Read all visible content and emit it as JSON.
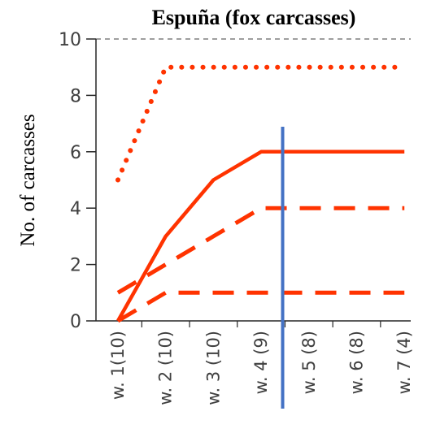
{
  "chart_data": {
    "type": "line",
    "title": "Espuña (fox carcasses)",
    "xlabel": "",
    "ylabel": "No. of carcasses",
    "ylim": [
      0,
      10
    ],
    "yticks": [
      0,
      2,
      4,
      6,
      8,
      10
    ],
    "top_gridline_dashed": true,
    "categories": [
      "w. 1(10)",
      "w. 2 (10)",
      "w. 3 (10)",
      "w. 4 (9)",
      "w. 5 (8)",
      "w. 6 (8)",
      "w. 7 (4)"
    ],
    "series": [
      {
        "values": [
          5,
          9,
          9,
          9,
          9,
          9,
          9
        ],
        "color": "#ff3300",
        "style": "dotted"
      },
      {
        "values": [
          0,
          3,
          5,
          6,
          6,
          6,
          6
        ],
        "color": "#ff3300",
        "style": "solid"
      },
      {
        "values": [
          1,
          2,
          3,
          4,
          4,
          4,
          4
        ],
        "color": "#ff3300",
        "style": "long-dash"
      },
      {
        "values": [
          0,
          1,
          1,
          1,
          1,
          1,
          1
        ],
        "color": "#ff3300",
        "style": "long-dash"
      }
    ],
    "vertical_marker": {
      "after_category_index": 3.45,
      "color": "#4472c4"
    }
  }
}
